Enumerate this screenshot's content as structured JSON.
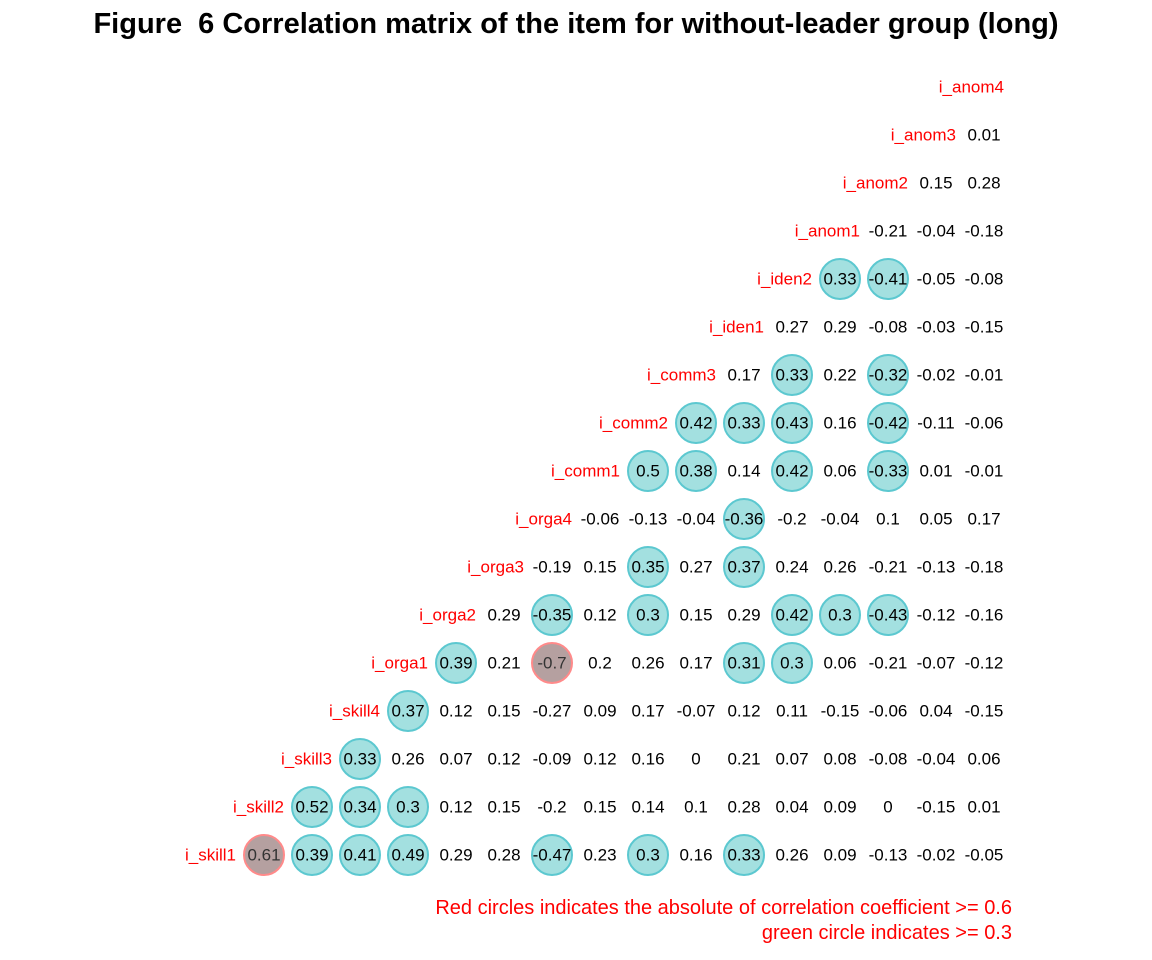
{
  "title": "Figure  6 Correlation matrix of the item for without-leader group (long)",
  "colors": {
    "label": "#ff0000",
    "value": "#000000",
    "circle_green_fill": "#66cccc",
    "circle_green_stroke": "#5cc8d0",
    "circle_red_fill": "#a88f8f",
    "circle_red_stroke": "#ff8a8a"
  },
  "chart_data": {
    "type": "heatmap",
    "variables": [
      "i_skill1",
      "i_skill2",
      "i_skill3",
      "i_skill4",
      "i_orga1",
      "i_orga2",
      "i_orga3",
      "i_orga4",
      "i_comm1",
      "i_comm2",
      "i_comm3",
      "i_iden1",
      "i_iden2",
      "i_anom1",
      "i_anom2",
      "i_anom3",
      "i_anom4"
    ],
    "value_labels": [
      [
        "0.61",
        "0.39",
        "0.41",
        "0.49",
        "0.29",
        "0.28",
        "-0.47",
        "0.23",
        "0.3",
        "0.16",
        "0.33",
        "0.26",
        "0.09",
        "-0.13",
        "-0.02",
        "-0.05"
      ],
      [
        "0.52",
        "0.34",
        "0.3",
        "0.12",
        "0.15",
        "-0.2",
        "0.15",
        "0.14",
        "0.1",
        "0.28",
        "0.04",
        "0.09",
        "0",
        "-0.15",
        "0.01"
      ],
      [
        "0.33",
        "0.26",
        "0.07",
        "0.12",
        "-0.09",
        "0.12",
        "0.16",
        "0",
        "0.21",
        "0.07",
        "0.08",
        "-0.08",
        "-0.04",
        "0.06"
      ],
      [
        "0.37",
        "0.12",
        "0.15",
        "-0.27",
        "0.09",
        "0.17",
        "-0.07",
        "0.12",
        "0.11",
        "-0.15",
        "-0.06",
        "0.04",
        "-0.15"
      ],
      [
        "0.39",
        "0.21",
        "-0.7",
        "0.2",
        "0.26",
        "0.17",
        "0.31",
        "0.3",
        "0.06",
        "-0.21",
        "-0.07",
        "-0.12"
      ],
      [
        "0.29",
        "-0.35",
        "0.12",
        "0.3",
        "0.15",
        "0.29",
        "0.42",
        "0.3",
        "-0.43",
        "-0.12",
        "-0.16"
      ],
      [
        "-0.19",
        "0.15",
        "0.35",
        "0.27",
        "0.37",
        "0.24",
        "0.26",
        "-0.21",
        "-0.13",
        "-0.18"
      ],
      [
        "-0.06",
        "-0.13",
        "-0.04",
        "-0.36",
        "-0.2",
        "-0.04",
        "0.1",
        "0.05",
        "0.17"
      ],
      [
        "0.5",
        "0.38",
        "0.14",
        "0.42",
        "0.06",
        "-0.33",
        "0.01",
        "-0.01"
      ],
      [
        "0.42",
        "0.33",
        "0.43",
        "0.16",
        "-0.42",
        "-0.11",
        "-0.06"
      ],
      [
        "0.17",
        "0.33",
        "0.22",
        "-0.32",
        "-0.02",
        "-0.01"
      ],
      [
        "0.27",
        "0.29",
        "-0.08",
        "-0.03",
        "-0.15"
      ],
      [
        "0.33",
        "-0.41",
        "-0.05",
        "-0.08"
      ],
      [
        "-0.21",
        "-0.04",
        "-0.18"
      ],
      [
        "0.15",
        "0.28"
      ],
      [
        "0.01"
      ],
      []
    ],
    "thresholds": {
      "red": 0.6,
      "green": 0.3
    },
    "annotations": [
      "Red circles indicates the absolute of correlation coefficient >= 0.6",
      "green circle indicates >= 0.3"
    ]
  }
}
